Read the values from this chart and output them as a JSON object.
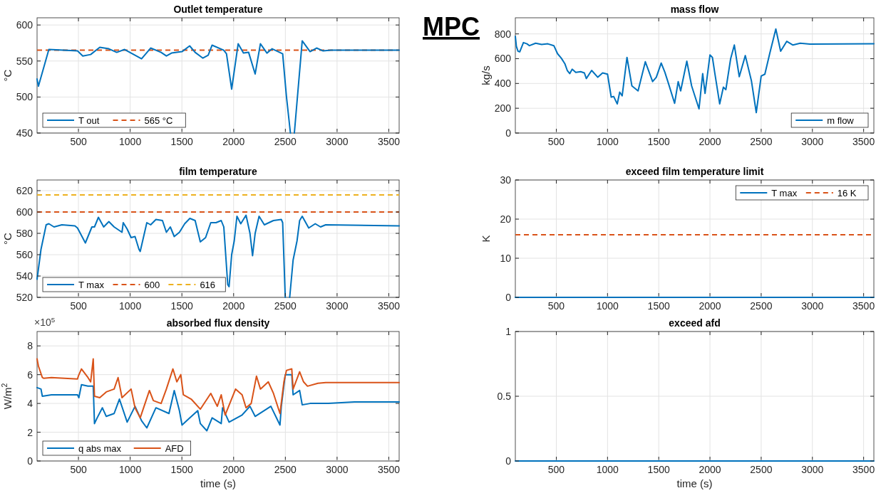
{
  "chart_data": [
    {
      "type": "line",
      "title": "Outlet temperature",
      "ylabel": "°C",
      "xlim": [
        100,
        3600
      ],
      "xticks": [
        500,
        1000,
        1500,
        2000,
        2500,
        3000,
        3500
      ],
      "ylim": [
        450,
        610
      ],
      "yticks": [
        450,
        500,
        550,
        600
      ],
      "grid": true,
      "legend": "bottom left",
      "series": [
        {
          "name": "T out",
          "color": "#0072bd",
          "x": [
            100,
            113,
            214,
            491,
            542,
            618,
            706,
            794,
            870,
            946,
            1022,
            1110,
            1198,
            1299,
            1350,
            1400,
            1501,
            1575,
            1628,
            1703,
            1754,
            1792,
            1905,
            1931,
            1981,
            2044,
            2095,
            2145,
            2208,
            2259,
            2322,
            2372,
            2474,
            2511,
            2549,
            2568,
            2587,
            2663,
            2739,
            2802,
            2865,
            2941,
            3600
          ],
          "values": [
            525,
            515,
            566,
            564,
            557,
            559,
            569,
            567,
            562,
            566,
            560,
            553,
            568,
            562,
            557,
            561,
            563,
            571,
            562,
            554,
            558,
            572,
            565,
            560,
            511,
            574,
            561,
            562,
            532,
            574,
            561,
            567,
            560,
            500,
            450,
            null,
            450,
            578,
            563,
            568,
            564,
            565,
            565
          ]
        }
      ],
      "ref_lines": [
        {
          "axis": "y",
          "value": 565,
          "label": "565 °C",
          "color": "#d95319",
          "line_style": "dashed"
        }
      ]
    },
    {
      "type": "line",
      "title": "mass flow",
      "ylabel": "kg/s",
      "xlim": [
        100,
        3600
      ],
      "xticks": [
        500,
        1000,
        1500,
        2000,
        2500,
        3000,
        3500
      ],
      "ylim": [
        0,
        930
      ],
      "yticks": [
        0,
        200,
        400,
        600,
        800
      ],
      "grid": true,
      "legend": "bottom right",
      "series": [
        {
          "name": "m flow",
          "color": "#0072bd",
          "x": [
            100,
            110,
            126,
            143,
            179,
            214,
            238,
            298,
            357,
            417,
            476,
            512,
            548,
            583,
            607,
            631,
            655,
            690,
            738,
            774,
            793,
            845,
            905,
            952,
            1000,
            1036,
            1060,
            1095,
            1119,
            1143,
            1190,
            1238,
            1298,
            1369,
            1440,
            1476,
            1524,
            1560,
            1595,
            1655,
            1690,
            1714,
            1774,
            1821,
            1893,
            1929,
            1952,
            2000,
            2024,
            2048,
            2095,
            2131,
            2155,
            2202,
            2238,
            2286,
            2345,
            2405,
            2452,
            2500,
            2536,
            2583,
            2643,
            2690,
            2750,
            2810,
            2881,
            2976,
            3600
          ],
          "values": [
            780,
            700,
            660,
            655,
            730,
            720,
            705,
            725,
            715,
            720,
            705,
            640,
            605,
            560,
            505,
            480,
            515,
            490,
            495,
            485,
            440,
            505,
            450,
            485,
            475,
            290,
            295,
            235,
            330,
            300,
            610,
            380,
            340,
            575,
            415,
            450,
            565,
            490,
            400,
            240,
            415,
            340,
            580,
            380,
            195,
            480,
            320,
            630,
            610,
            480,
            235,
            370,
            350,
            600,
            710,
            455,
            625,
            420,
            165,
            460,
            475,
            640,
            840,
            660,
            740,
            710,
            725,
            718,
            720
          ]
        }
      ]
    },
    {
      "type": "line",
      "title": "film temperature",
      "ylabel": "°C",
      "xlim": [
        100,
        3600
      ],
      "xticks": [
        500,
        1000,
        1500,
        2000,
        2500,
        3000,
        3500
      ],
      "ylim": [
        520,
        630
      ],
      "yticks": [
        520,
        540,
        560,
        580,
        600,
        620
      ],
      "grid": true,
      "legend": "bottom left",
      "series": [
        {
          "name": "T max",
          "color": "#0072bd",
          "x": [
            100,
            138,
            188,
            214,
            264,
            340,
            466,
            491,
            567,
            630,
            655,
            693,
            744,
            794,
            845,
            921,
            933,
            971,
            1009,
            1047,
            1085,
            1097,
            1161,
            1198,
            1249,
            1312,
            1350,
            1388,
            1426,
            1476,
            1527,
            1577,
            1628,
            1678,
            1729,
            1779,
            1830,
            1880,
            1905,
            1943,
            1956,
            1981,
            2006,
            2032,
            2069,
            2120,
            2158,
            2183,
            2208,
            2246,
            2297,
            2385,
            2461,
            2474,
            2499,
            2520,
            2542,
            2575,
            2613,
            2638,
            2663,
            2726,
            2789,
            2840,
            2890,
            3600
          ],
          "values": [
            537,
            565,
            588,
            589,
            586,
            588,
            587,
            585,
            571,
            586,
            586,
            595,
            586,
            591,
            586,
            581,
            590,
            584,
            576,
            577,
            565,
            563,
            590,
            588,
            593,
            592,
            581,
            586,
            577,
            581,
            589,
            594,
            592,
            572,
            576,
            590,
            590,
            592,
            586,
            532,
            530,
            560,
            573,
            596,
            589,
            597,
            580,
            559,
            580,
            596,
            588,
            592,
            593,
            590,
            520,
            null,
            520,
            555,
            573,
            592,
            596,
            585,
            589,
            586,
            588,
            587
          ]
        }
      ],
      "ref_lines": [
        {
          "axis": "y",
          "value": 600,
          "label": "600",
          "color": "#d95319",
          "line_style": "dashed"
        },
        {
          "axis": "y",
          "value": 616,
          "label": "616",
          "color": "#edb120",
          "line_style": "dashed"
        }
      ]
    },
    {
      "type": "line",
      "title": "exceed film temperature limit",
      "ylabel": "K",
      "xlim": [
        100,
        3600
      ],
      "xticks": [
        500,
        1000,
        1500,
        2000,
        2500,
        3000,
        3500
      ],
      "ylim": [
        0,
        30
      ],
      "yticks": [
        0,
        10,
        20,
        30
      ],
      "grid": true,
      "legend": "top right",
      "series": [
        {
          "name": "T max",
          "color": "#0072bd",
          "x": [
            100,
            3600
          ],
          "values": [
            0,
            0
          ]
        }
      ],
      "ref_lines": [
        {
          "axis": "y",
          "value": 16,
          "label": "16 K",
          "color": "#d95319",
          "line_style": "dashed"
        }
      ]
    },
    {
      "type": "line",
      "title": "absorbed flux density",
      "xlabel": "time (s)",
      "ylabel": "W/m$^{2}$",
      "annotations": [
        "×10$^{5}$"
      ],
      "xlim": [
        100,
        3600
      ],
      "xticks": [
        500,
        1000,
        1500,
        2000,
        2500,
        3000,
        3500
      ],
      "ylim": [
        0,
        9
      ],
      "yticks": [
        0,
        2,
        4,
        6,
        8
      ],
      "grid": true,
      "legend": "bottom left",
      "series": [
        {
          "name": "q abs max",
          "color": "#0072bd",
          "x": [
            100,
            138,
            151,
            239,
            491,
            504,
            529,
            592,
            643,
            655,
            681,
            731,
            769,
            845,
            896,
            971,
            1047,
            1110,
            1161,
            1249,
            1375,
            1426,
            1476,
            1501,
            1577,
            1653,
            1678,
            1741,
            1792,
            1880,
            1893,
            1956,
            2082,
            2158,
            2208,
            2360,
            2448,
            2461,
            2499,
            2562,
            2575,
            2638,
            2663,
            2739,
            2916,
            3167,
            3600
          ],
          "values": [
            5.1,
            5.0,
            4.5,
            4.6,
            4.6,
            4.4,
            5.3,
            5.2,
            5.2,
            2.6,
            3.0,
            3.7,
            3.1,
            3.3,
            4.3,
            2.7,
            3.8,
            2.8,
            2.3,
            3.7,
            3.3,
            4.9,
            3.5,
            2.5,
            3.0,
            3.5,
            2.6,
            2.1,
            3.0,
            2.6,
            3.7,
            2.7,
            3.2,
            3.8,
            3.1,
            3.8,
            2.5,
            3.8,
            6.0,
            6.0,
            4.6,
            4.9,
            3.9,
            4.0,
            4.0,
            4.1,
            4.1
          ]
        },
        {
          "name": "AFD",
          "color": "#d95319",
          "x": [
            100,
            113,
            151,
            163,
            239,
            491,
            499,
            529,
            592,
            618,
            643,
            655,
            706,
            769,
            845,
            883,
            921,
            1009,
            1047,
            1097,
            1186,
            1224,
            1299,
            1350,
            1413,
            1451,
            1489,
            1514,
            1590,
            1678,
            1779,
            1842,
            1880,
            1918,
            2019,
            2082,
            2120,
            2170,
            2221,
            2259,
            2335,
            2385,
            2448,
            2486,
            2511,
            2562,
            2575,
            2638,
            2676,
            2714,
            2815,
            2890,
            3600
          ],
          "values": [
            7.1,
            6.6,
            5.8,
            5.75,
            5.8,
            5.7,
            5.9,
            6.4,
            5.8,
            5.5,
            7.1,
            4.5,
            4.4,
            4.8,
            5.0,
            5.8,
            4.4,
            5.0,
            3.7,
            3.0,
            4.9,
            4.2,
            4.0,
            5.0,
            6.4,
            5.5,
            6.0,
            4.6,
            4.3,
            3.6,
            4.7,
            3.8,
            4.6,
            3.2,
            5.0,
            4.6,
            3.7,
            4.0,
            5.9,
            5.0,
            5.5,
            4.7,
            3.3,
            5.5,
            6.3,
            6.4,
            5.0,
            6.2,
            5.5,
            5.2,
            5.4,
            5.45,
            5.45
          ]
        }
      ]
    },
    {
      "type": "line",
      "title": "exceed afd",
      "xlabel": "time (s)",
      "xlim": [
        100,
        3600
      ],
      "xticks": [
        500,
        1000,
        1500,
        2000,
        2500,
        3000,
        3500
      ],
      "ylim": [
        0,
        1
      ],
      "yticks": [
        0,
        0.5,
        1
      ],
      "grid": true,
      "series": [
        {
          "color": "#0072bd",
          "x": [
            100,
            3600
          ],
          "values": [
            0,
            0
          ]
        }
      ]
    },
    {
      "type": "other",
      "title": "MPC"
    }
  ]
}
